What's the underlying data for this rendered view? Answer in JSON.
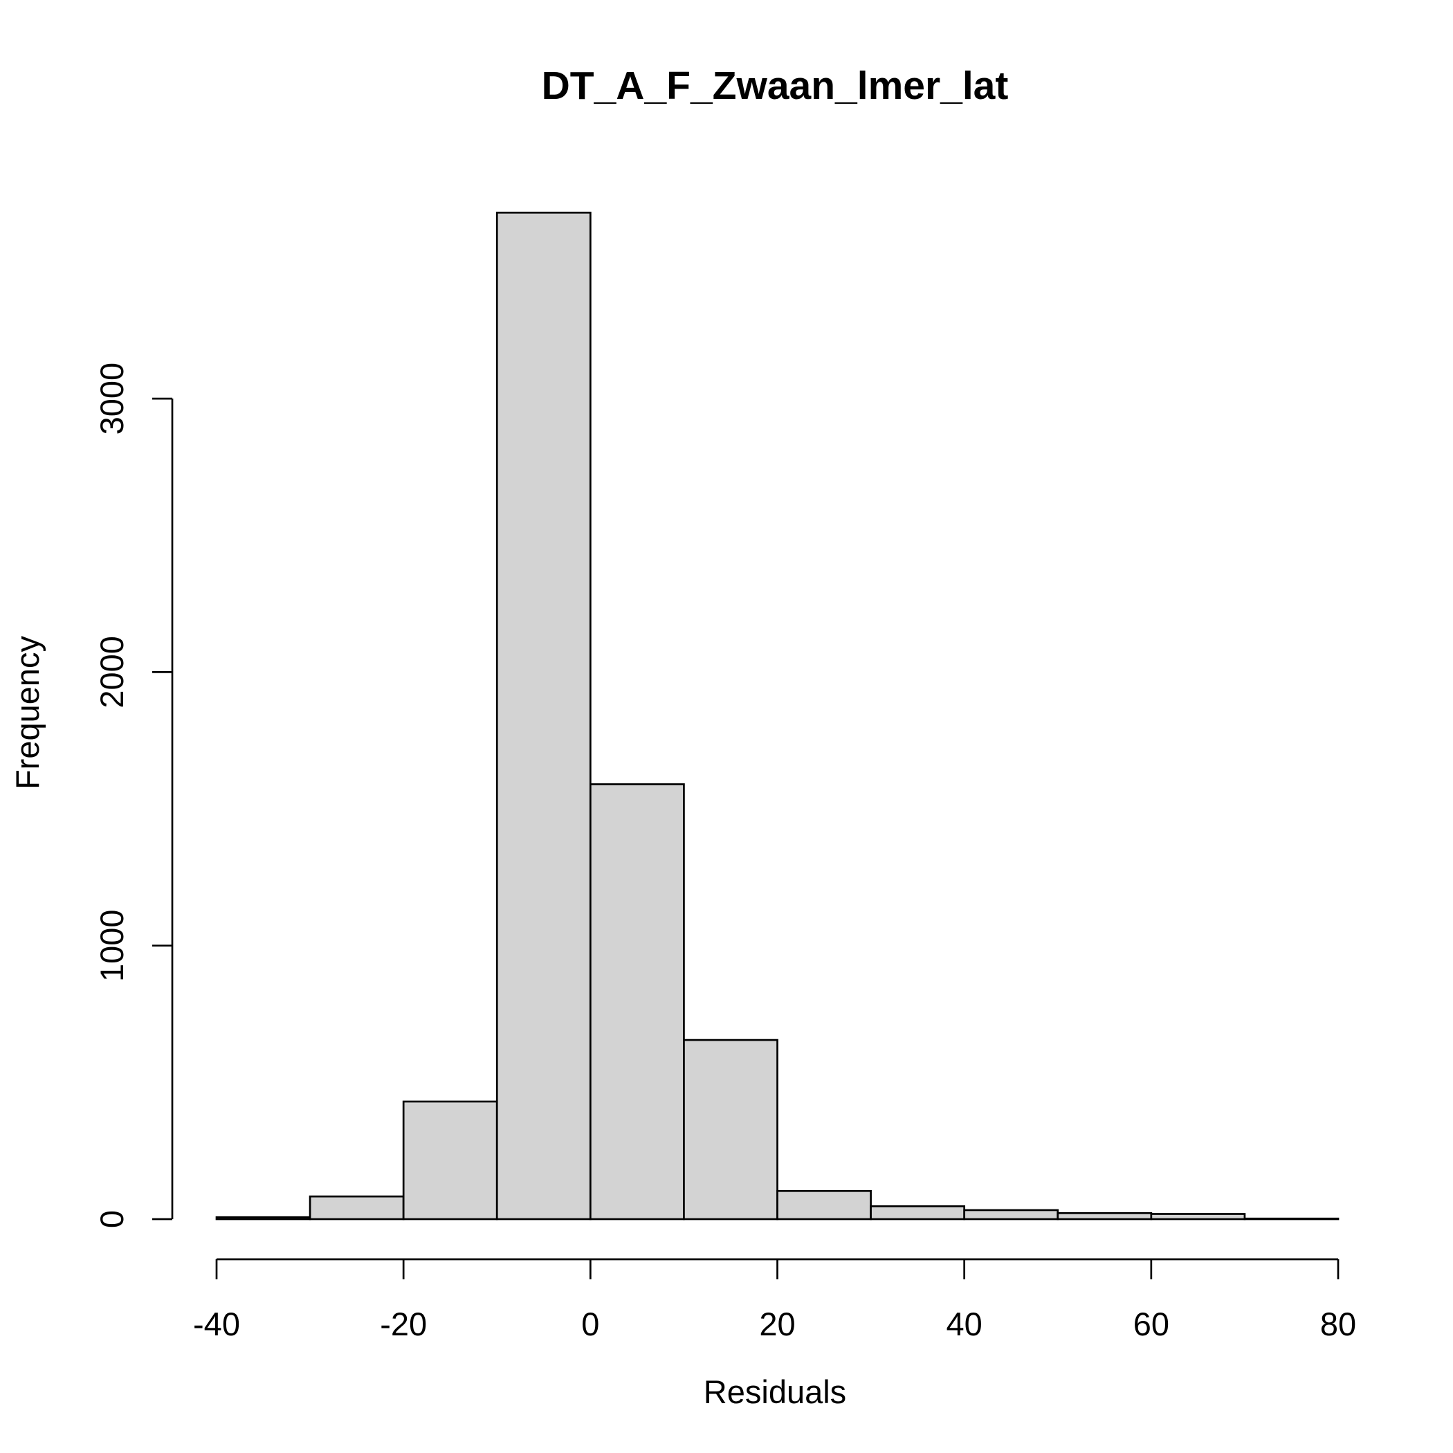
{
  "chart_data": {
    "type": "bar",
    "subtype": "histogram",
    "title": "DT_A_F_Zwaan_lmer_lat",
    "xlabel": "Residuals",
    "ylabel": "Frequency",
    "xlim": [
      -40,
      80
    ],
    "ylim": [
      0,
      3700
    ],
    "x_ticks": [
      "-40",
      "-20",
      "0",
      "20",
      "40",
      "60",
      "80"
    ],
    "y_ticks": [
      "0",
      "1000",
      "2000",
      "3000"
    ],
    "bin_edges": [
      -40,
      -30,
      -20,
      -10,
      0,
      10,
      20,
      30,
      40,
      50,
      60,
      70,
      80
    ],
    "values": [
      7,
      83,
      430,
      3680,
      1590,
      655,
      103,
      47,
      33,
      22,
      19,
      2
    ],
    "bar_color": "#d3d3d3",
    "grid": false
  }
}
